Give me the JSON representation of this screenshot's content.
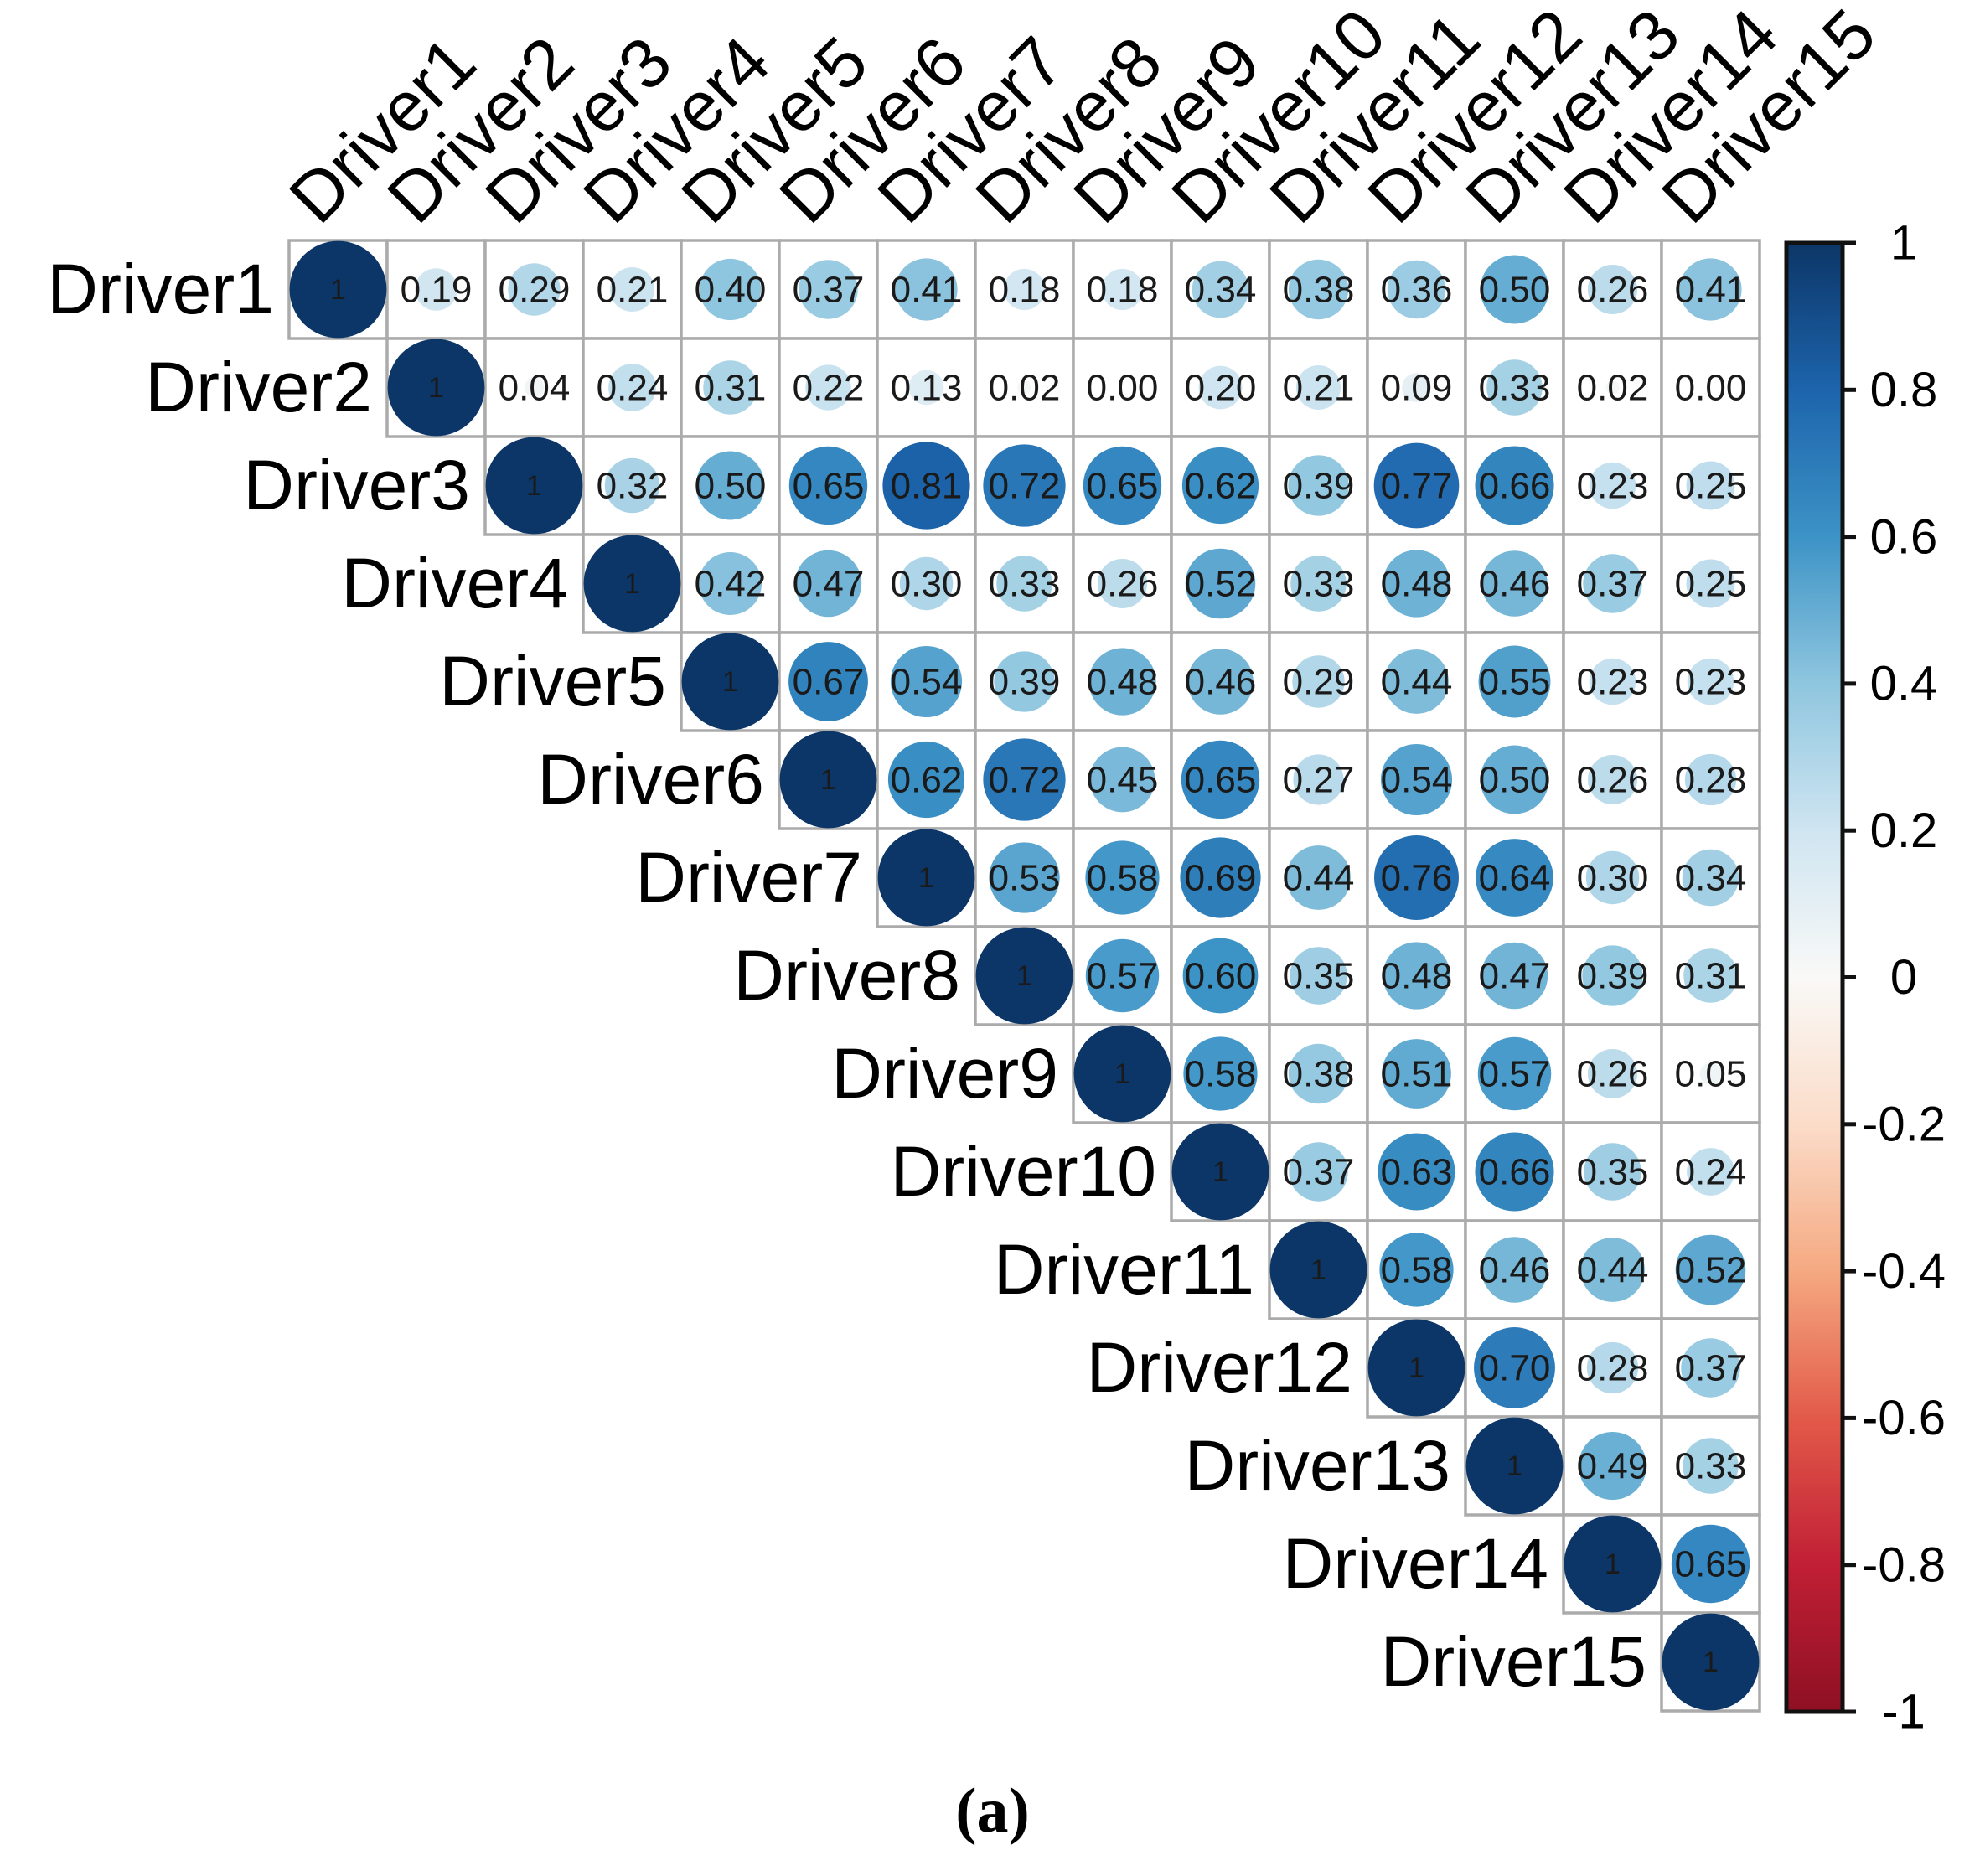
{
  "figure": {
    "caption": "(a)"
  },
  "chart_data": {
    "type": "heatmap",
    "subtype": "upper-triangular correlation matrix, circle + number style",
    "title": "",
    "labels": [
      "Driver1",
      "Driver2",
      "Driver3",
      "Driver4",
      "Driver5",
      "Driver6",
      "Driver7",
      "Driver8",
      "Driver9",
      "Driver10",
      "Driver11",
      "Driver12",
      "Driver13",
      "Driver14",
      "Driver15"
    ],
    "matrix_upper_triangle": [
      [
        1,
        0.19,
        0.29,
        0.21,
        0.4,
        0.37,
        0.41,
        0.18,
        0.18,
        0.34,
        0.38,
        0.36,
        0.5,
        0.26,
        0.41
      ],
      [
        1,
        0.04,
        0.24,
        0.31,
        0.22,
        0.13,
        0.02,
        0.0,
        0.2,
        0.21,
        0.09,
        0.33,
        0.02,
        0.0
      ],
      [
        1,
        0.32,
        0.5,
        0.65,
        0.81,
        0.72,
        0.65,
        0.62,
        0.39,
        0.77,
        0.66,
        0.23,
        0.25
      ],
      [
        1,
        0.42,
        0.47,
        0.3,
        0.33,
        0.26,
        0.52,
        0.33,
        0.48,
        0.46,
        0.37,
        0.25
      ],
      [
        1,
        0.67,
        0.54,
        0.39,
        0.48,
        0.46,
        0.29,
        0.44,
        0.55,
        0.23,
        0.23
      ],
      [
        1,
        0.62,
        0.72,
        0.45,
        0.65,
        0.27,
        0.54,
        0.5,
        0.26,
        0.28
      ],
      [
        1,
        0.53,
        0.58,
        0.69,
        0.44,
        0.76,
        0.64,
        0.3,
        0.34
      ],
      [
        1,
        0.57,
        0.6,
        0.35,
        0.48,
        0.47,
        0.39,
        0.31
      ],
      [
        1,
        0.58,
        0.38,
        0.51,
        0.57,
        0.26,
        0.05
      ],
      [
        1,
        0.37,
        0.63,
        0.66,
        0.35,
        0.24
      ],
      [
        1,
        0.58,
        0.46,
        0.44,
        0.52
      ],
      [
        1,
        0.7,
        0.28,
        0.37
      ],
      [
        1,
        0.49,
        0.33
      ],
      [
        1,
        0.65
      ],
      [
        1
      ]
    ],
    "diagonal_display": "1",
    "value_decimals": 2,
    "colorbar": {
      "position": "right",
      "range": [
        -1,
        1
      ],
      "tick_labels": [
        "1",
        "0.8",
        "0.6",
        "0.4",
        "0.2",
        "0",
        "-0.2",
        "-0.4",
        "-0.6",
        "-0.8",
        "-1"
      ],
      "tick_values": [
        1,
        0.8,
        0.6,
        0.4,
        0.2,
        0,
        -0.2,
        -0.4,
        -0.6,
        -0.8,
        -1
      ],
      "gradient_stops": [
        {
          "value": 1.0,
          "color": "#0C3667"
        },
        {
          "value": 0.8,
          "color": "#1D64AC"
        },
        {
          "value": 0.6,
          "color": "#3C93C6"
        },
        {
          "value": 0.4,
          "color": "#8FC6DF"
        },
        {
          "value": 0.2,
          "color": "#CFE5F1"
        },
        {
          "value": 0.0,
          "color": "#F9F9F7"
        },
        {
          "value": -0.2,
          "color": "#FBDCC9"
        },
        {
          "value": -0.4,
          "color": "#F5A981"
        },
        {
          "value": -0.6,
          "color": "#E25A49"
        },
        {
          "value": -0.8,
          "color": "#C11F35"
        },
        {
          "value": -1.0,
          "color": "#8E1023"
        }
      ]
    },
    "styles": {
      "grid_line_color": "#ABABAB",
      "cell_background": "#FFFFFF",
      "value_text_color": "#1A1A1A",
      "label_text_color": "#000000",
      "colorbar_border_color": "#111111"
    }
  }
}
